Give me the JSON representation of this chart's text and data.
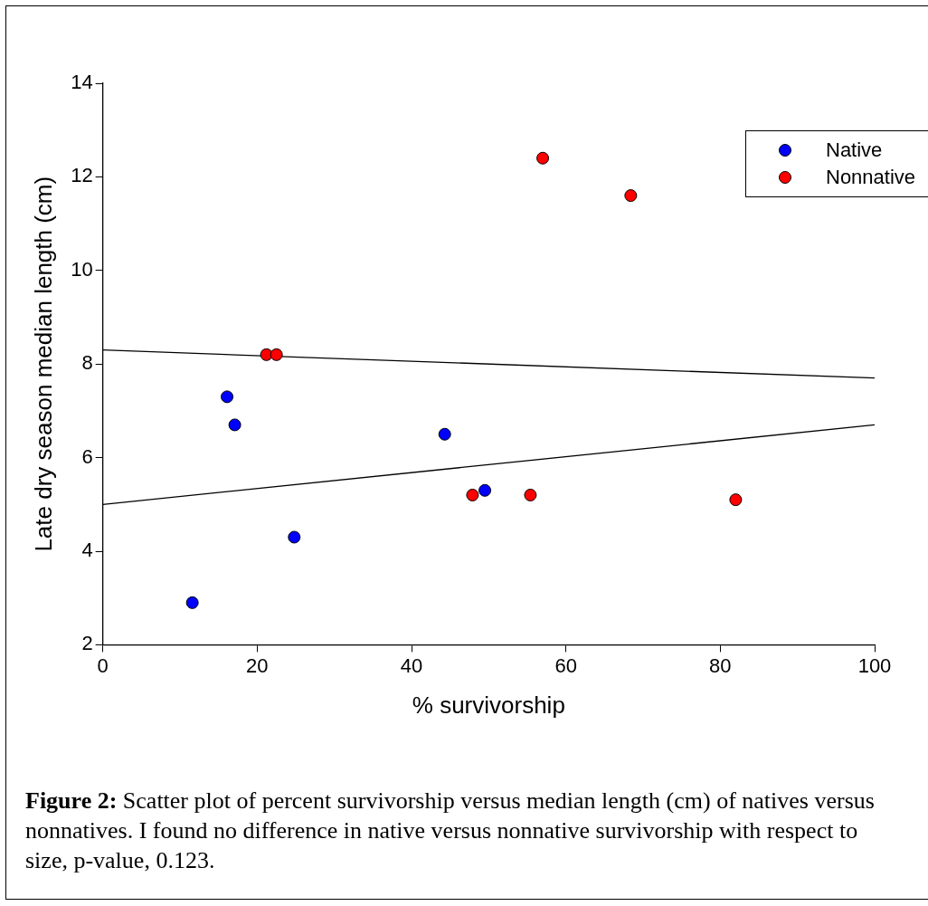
{
  "chart_data": {
    "type": "scatter",
    "xlabel": "% survivorship",
    "ylabel": "Late dry season median length (cm)",
    "xlim": [
      0,
      100
    ],
    "xticks": [
      0,
      20,
      40,
      60,
      80,
      100
    ],
    "ylim": [
      2,
      14
    ],
    "yticks": [
      2,
      4,
      6,
      8,
      10,
      12,
      14
    ],
    "series": [
      {
        "name": "Native",
        "color": "#0000ff",
        "x": [
          11.6,
          16.1,
          17.1,
          24.8,
          44.3,
          49.5
        ],
        "values": [
          2.9,
          7.3,
          6.7,
          4.3,
          6.5,
          5.3
        ]
      },
      {
        "name": "Nonnative",
        "color": "#ff0000",
        "x": [
          21.2,
          22.5,
          57.0,
          68.4,
          47.9,
          55.4,
          82.0
        ],
        "values": [
          8.2,
          8.2,
          12.4,
          11.6,
          5.2,
          5.2,
          5.1
        ]
      },
      {
        "type": "line",
        "marker": "none",
        "color": "#000000",
        "x": [
          0,
          100
        ],
        "values": [
          8.3,
          7.7
        ]
      },
      {
        "type": "line",
        "marker": "none",
        "color": "#000000",
        "x": [
          0,
          100
        ],
        "values": [
          5.0,
          6.7
        ]
      }
    ],
    "marker": "circle",
    "grid": false,
    "legend": "top right",
    "annotations": [
      "Figure 2: Scatter plot of percent survivorship versus median length (cm) of natives versus nonnatives. I found no difference in native versus nonnative survivorship with respect to size, p-value, 0.123."
    ]
  }
}
